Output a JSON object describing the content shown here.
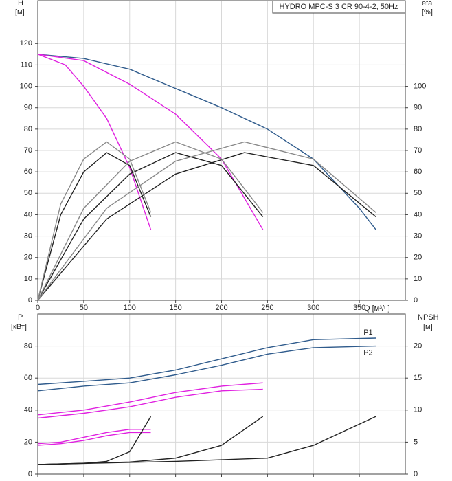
{
  "chart_data": [
    {
      "type": "line",
      "title": "HYDRO MPC-S 3 CR 90-4-2, 50Hz",
      "y_label": "H",
      "y_unit": "[м]",
      "y2_label": "eta",
      "y2_unit": "[%]",
      "x_label": "Q [м³/ч]",
      "xlim": [
        0,
        400
      ],
      "xticks": [
        0,
        50,
        100,
        150,
        200,
        250,
        300,
        350
      ],
      "ylim": [
        0,
        140
      ],
      "yticks": [
        0,
        10,
        20,
        30,
        40,
        50,
        60,
        70,
        80,
        90,
        100,
        110,
        120
      ],
      "y2lim": [
        0,
        140
      ],
      "y2ticks": [
        0,
        10,
        20,
        30,
        40,
        50,
        60,
        70,
        80,
        90,
        100
      ],
      "grid": true,
      "series": [
        {
          "color": "#2f5b8c",
          "x": [
            0,
            50,
            100,
            150,
            200,
            250,
            300,
            350,
            368
          ],
          "values": [
            115,
            113,
            108,
            99,
            90,
            80,
            66,
            43,
            33
          ]
        },
        {
          "color": "#e020e0",
          "x": [
            0,
            50,
            100,
            150,
            200,
            245
          ],
          "values": [
            115,
            112,
            101,
            87,
            66,
            33
          ]
        },
        {
          "color": "#e020e0",
          "x": [
            0,
            30,
            50,
            75,
            100,
            123
          ],
          "values": [
            115,
            110,
            100,
            85,
            62,
            33
          ]
        },
        {
          "color": "#222222",
          "axis": "y2",
          "x": [
            0,
            25,
            50,
            75,
            100,
            123
          ],
          "values": [
            0,
            40,
            60,
            69,
            63,
            39
          ]
        },
        {
          "color": "#222222",
          "axis": "y2",
          "x": [
            0,
            50,
            100,
            150,
            200,
            245
          ],
          "values": [
            0,
            38,
            59,
            69,
            63,
            39
          ]
        },
        {
          "color": "#222222",
          "axis": "y2",
          "x": [
            0,
            75,
            150,
            225,
            300,
            368
          ],
          "values": [
            0,
            38,
            59,
            69,
            63,
            39
          ]
        },
        {
          "color": "#888888",
          "axis": "y2",
          "x": [
            0,
            25,
            50,
            75,
            100,
            123
          ],
          "values": [
            0,
            45,
            66,
            74,
            66,
            41
          ]
        },
        {
          "color": "#888888",
          "axis": "y2",
          "x": [
            0,
            50,
            100,
            150,
            200,
            245
          ],
          "values": [
            0,
            43,
            65,
            74,
            66,
            41
          ]
        },
        {
          "color": "#888888",
          "axis": "y2",
          "x": [
            0,
            75,
            150,
            225,
            300,
            368
          ],
          "values": [
            0,
            43,
            65,
            74,
            66,
            41
          ]
        }
      ]
    },
    {
      "type": "line",
      "y_label": "P",
      "y_unit": "[кВт]",
      "y2_label": "NPSH",
      "y2_unit": "[м]",
      "xlim": [
        0,
        400
      ],
      "xticks": [
        0,
        50,
        100,
        150,
        200,
        250,
        300,
        350
      ],
      "ylim": [
        0,
        100
      ],
      "yticks": [
        0,
        20,
        40,
        60,
        80
      ],
      "y2lim": [
        0,
        25
      ],
      "y2ticks": [
        0,
        5,
        10,
        15,
        20
      ],
      "grid": true,
      "series": [
        {
          "name": "P1",
          "color": "#2f5b8c",
          "x": [
            0,
            50,
            100,
            150,
            200,
            250,
            300,
            368
          ],
          "values": [
            56,
            58,
            60,
            65,
            72,
            79,
            84,
            85
          ]
        },
        {
          "name": "P2",
          "color": "#2f5b8c",
          "x": [
            0,
            50,
            100,
            150,
            200,
            250,
            300,
            368
          ],
          "values": [
            52,
            55,
            57,
            62,
            68,
            75,
            79,
            80
          ]
        },
        {
          "color": "#e020e0",
          "x": [
            0,
            50,
            100,
            150,
            200,
            245
          ],
          "values": [
            37,
            40,
            45,
            51,
            55,
            57
          ]
        },
        {
          "color": "#e020e0",
          "x": [
            0,
            50,
            100,
            150,
            200,
            245
          ],
          "values": [
            35,
            38,
            42,
            48,
            52,
            53
          ]
        },
        {
          "color": "#e020e0",
          "x": [
            0,
            25,
            50,
            75,
            100,
            123
          ],
          "values": [
            19,
            20,
            23,
            26,
            28,
            28
          ]
        },
        {
          "color": "#e020e0",
          "x": [
            0,
            25,
            50,
            75,
            100,
            123
          ],
          "values": [
            18,
            19,
            21,
            24,
            26,
            26
          ]
        },
        {
          "color": "#222222",
          "axis": "y2",
          "x": [
            0,
            50,
            75,
            100,
            123
          ],
          "values": [
            1.5,
            1.7,
            2,
            3.5,
            9
          ]
        },
        {
          "color": "#222222",
          "axis": "y2",
          "x": [
            0,
            100,
            150,
            200,
            245
          ],
          "values": [
            1.5,
            1.9,
            2.5,
            4.5,
            9
          ]
        },
        {
          "color": "#222222",
          "axis": "y2",
          "x": [
            0,
            150,
            250,
            300,
            368
          ],
          "values": [
            1.5,
            2,
            2.5,
            4.5,
            9
          ]
        }
      ]
    }
  ]
}
